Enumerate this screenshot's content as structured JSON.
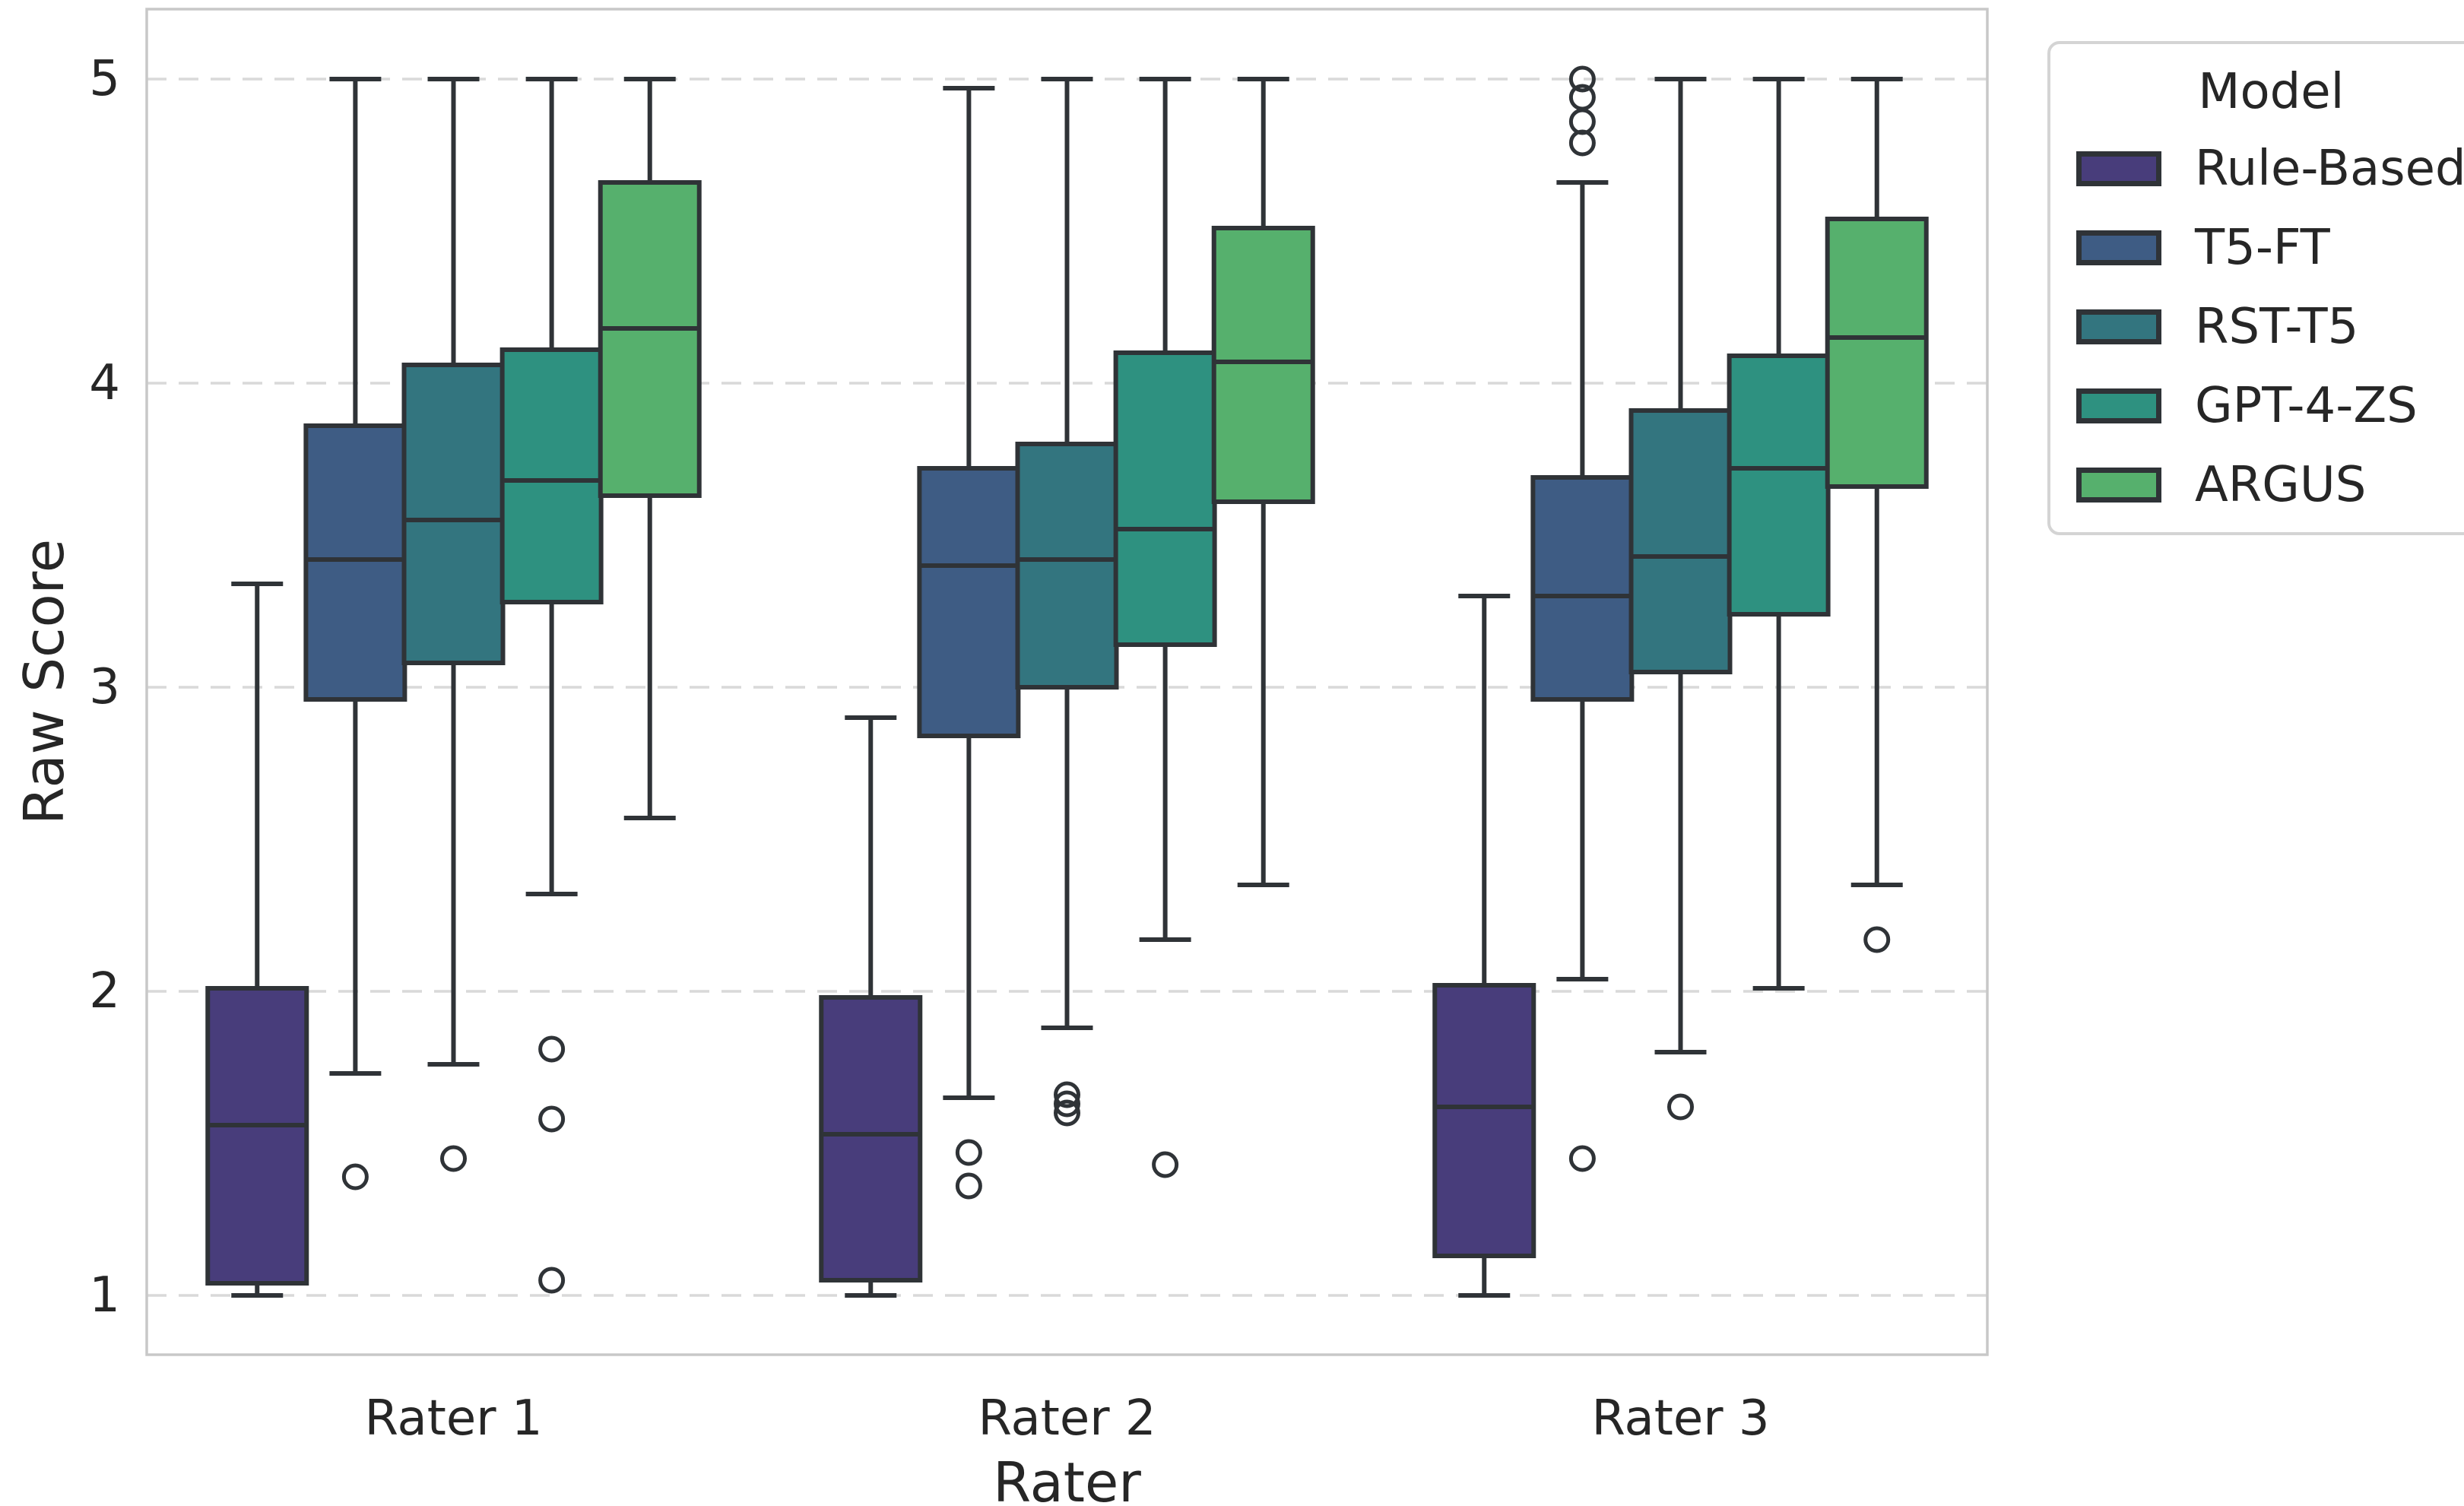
{
  "chart_data": {
    "type": "boxplot",
    "title": "",
    "xlabel": "Rater",
    "ylabel": "Raw Score",
    "categories": [
      "Rater 1",
      "Rater 2",
      "Rater 3"
    ],
    "yticks": [
      1,
      2,
      3,
      4,
      5
    ],
    "ylim": [
      0.8,
      5.23
    ],
    "grid": "horizontal-dashed",
    "legend_title": "Model",
    "legend_position": "outside-upper-right",
    "colors": {
      "box_edge": "#2f3337",
      "median_line": "#2f3337",
      "whisker": "#2f3337",
      "gridline": "#d9d9d9",
      "frame": "#c8c8c8",
      "text": "#262626",
      "background": "#ffffff"
    },
    "series": [
      {
        "name": "Rule-Based",
        "color": "#483d7b",
        "boxes": [
          {
            "whislo": 1.0,
            "q1": 1.04,
            "med": 1.56,
            "q3": 2.01,
            "whishi": 3.34,
            "outliers": []
          },
          {
            "whislo": 1.0,
            "q1": 1.05,
            "med": 1.53,
            "q3": 1.98,
            "whishi": 2.9,
            "outliers": []
          },
          {
            "whislo": 1.0,
            "q1": 1.13,
            "med": 1.62,
            "q3": 2.02,
            "whishi": 3.3,
            "outliers": []
          }
        ]
      },
      {
        "name": "T5-FT",
        "color": "#3e5c84",
        "boxes": [
          {
            "whislo": 1.73,
            "q1": 2.96,
            "med": 3.42,
            "q3": 3.86,
            "whishi": 5.0,
            "outliers": [
              1.39
            ]
          },
          {
            "whislo": 1.65,
            "q1": 2.84,
            "med": 3.4,
            "q3": 3.72,
            "whishi": 4.97,
            "outliers": [
              1.47,
              1.36
            ]
          },
          {
            "whislo": 2.04,
            "q1": 2.96,
            "med": 3.3,
            "q3": 3.69,
            "whishi": 4.66,
            "outliers": [
              5.0,
              4.94,
              4.86,
              4.79,
              1.45
            ]
          }
        ]
      },
      {
        "name": "RST-T5",
        "color": "#33757f",
        "boxes": [
          {
            "whislo": 1.76,
            "q1": 3.08,
            "med": 3.55,
            "q3": 4.06,
            "whishi": 5.0,
            "outliers": [
              1.45
            ]
          },
          {
            "whislo": 1.88,
            "q1": 3.0,
            "med": 3.42,
            "q3": 3.8,
            "whishi": 5.0,
            "outliers": [
              1.66,
              1.63,
              1.6
            ]
          },
          {
            "whislo": 1.8,
            "q1": 3.05,
            "med": 3.43,
            "q3": 3.91,
            "whishi": 5.0,
            "outliers": [
              1.62
            ]
          }
        ]
      },
      {
        "name": "GPT-4-ZS",
        "color": "#2e9180",
        "boxes": [
          {
            "whislo": 2.32,
            "q1": 3.28,
            "med": 3.68,
            "q3": 4.11,
            "whishi": 5.0,
            "outliers": [
              1.81,
              1.58,
              1.05
            ]
          },
          {
            "whislo": 2.17,
            "q1": 3.14,
            "med": 3.52,
            "q3": 4.1,
            "whishi": 5.0,
            "outliers": [
              1.43
            ]
          },
          {
            "whislo": 2.01,
            "q1": 3.24,
            "med": 3.72,
            "q3": 4.09,
            "whishi": 5.0,
            "outliers": []
          }
        ]
      },
      {
        "name": "ARGUS",
        "color": "#56b06d",
        "boxes": [
          {
            "whislo": 2.57,
            "q1": 3.63,
            "med": 4.18,
            "q3": 4.66,
            "whishi": 5.0,
            "outliers": []
          },
          {
            "whislo": 2.35,
            "q1": 3.61,
            "med": 4.07,
            "q3": 4.51,
            "whishi": 5.0,
            "outliers": []
          },
          {
            "whislo": 2.35,
            "q1": 3.66,
            "med": 4.15,
            "q3": 4.54,
            "whishi": 5.0,
            "outliers": [
              2.17
            ]
          }
        ]
      }
    ]
  }
}
